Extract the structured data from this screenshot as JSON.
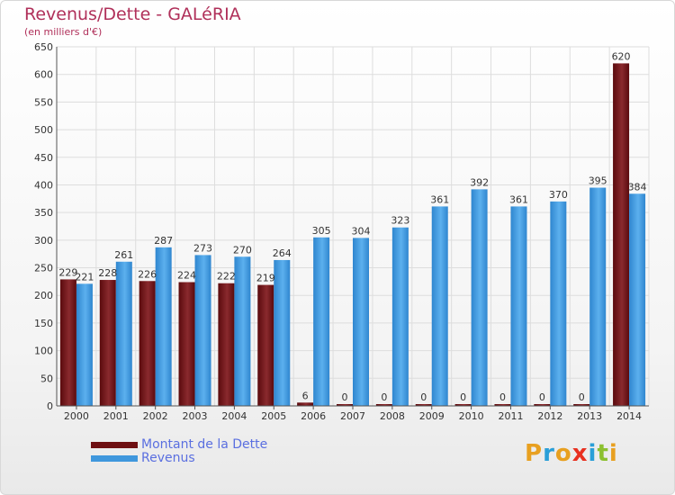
{
  "header": {
    "title": "Revenus/Dette - GALéRIA",
    "subtitle": "(en milliers d'€)"
  },
  "colors": {
    "dette": "#6e0f12",
    "revenus": "#3f97dd"
  },
  "chart_data": {
    "type": "bar",
    "title": "Revenus/Dette - GALéRIA",
    "ylabel": "(en milliers d'€)",
    "categories": [
      "2000",
      "2001",
      "2002",
      "2003",
      "2004",
      "2005",
      "2006",
      "2007",
      "2008",
      "2009",
      "2010",
      "2011",
      "2012",
      "2013",
      "2014"
    ],
    "series": [
      {
        "name": "Montant de la Dette",
        "values": [
          229,
          228,
          226,
          224,
          222,
          219,
          6,
          0,
          0,
          0,
          0,
          0,
          0,
          0,
          620
        ]
      },
      {
        "name": "Revenus",
        "values": [
          221,
          261,
          287,
          273,
          270,
          264,
          305,
          304,
          323,
          361,
          392,
          361,
          370,
          395,
          384
        ]
      }
    ],
    "ylim": [
      0,
      650
    ],
    "yticks": [
      0,
      50,
      100,
      150,
      200,
      250,
      300,
      350,
      400,
      450,
      500,
      550,
      600,
      650
    ],
    "grid": true,
    "legend": "bottom-left"
  },
  "legend": {
    "items": [
      {
        "label": "Montant de la Dette"
      },
      {
        "label": "Revenus"
      }
    ]
  },
  "logo": {
    "letters": [
      "P",
      "r",
      "o",
      "x",
      "i",
      "t",
      "i"
    ]
  }
}
